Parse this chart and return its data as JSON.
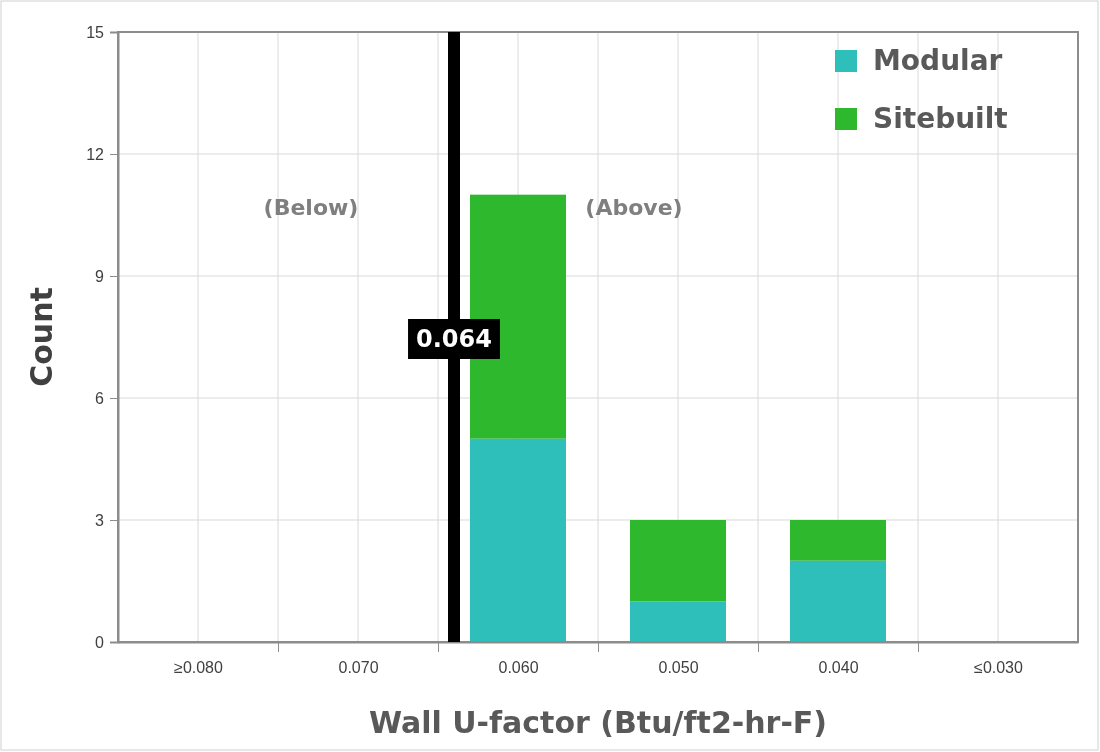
{
  "chart_data": {
    "type": "bar",
    "stacked": true,
    "xlabel": "Wall U-factor (Btu/ft2-hr-F)",
    "ylabel": "Count",
    "x": [
      0.08,
      0.07,
      0.06,
      0.05,
      0.04,
      0.03
    ],
    "series": [
      {
        "name": "Modular",
        "color": "#2fbfbb",
        "values": [
          0,
          0,
          5,
          1,
          2,
          0
        ]
      },
      {
        "name": "Sitebuilt",
        "color": "#2db82d",
        "values": [
          0,
          0,
          6,
          2,
          1,
          0
        ]
      }
    ],
    "xlim": [
      0.085,
      0.025
    ],
    "xticks": [
      {
        "value": 0.08,
        "label": "≥0.080"
      },
      {
        "value": 0.075,
        "label": null
      },
      {
        "value": 0.07,
        "label": "0.070"
      },
      {
        "value": 0.065,
        "label": null
      },
      {
        "value": 0.06,
        "label": "0.060"
      },
      {
        "value": 0.055,
        "label": null
      },
      {
        "value": 0.05,
        "label": "0.050"
      },
      {
        "value": 0.045,
        "label": null
      },
      {
        "value": 0.04,
        "label": "0.040"
      },
      {
        "value": 0.035,
        "label": null
      },
      {
        "value": 0.03,
        "label": "≤0.030"
      }
    ],
    "ylim": [
      0,
      15
    ],
    "yticks": [
      0,
      3,
      6,
      9,
      12,
      15
    ],
    "grid": true,
    "legend": "top right",
    "ref_lines": [
      {
        "axis": "x",
        "value": 0.064,
        "label": "0.064",
        "color": "#000000"
      }
    ],
    "annotations": [
      "(Below)",
      "(Above)"
    ]
  }
}
